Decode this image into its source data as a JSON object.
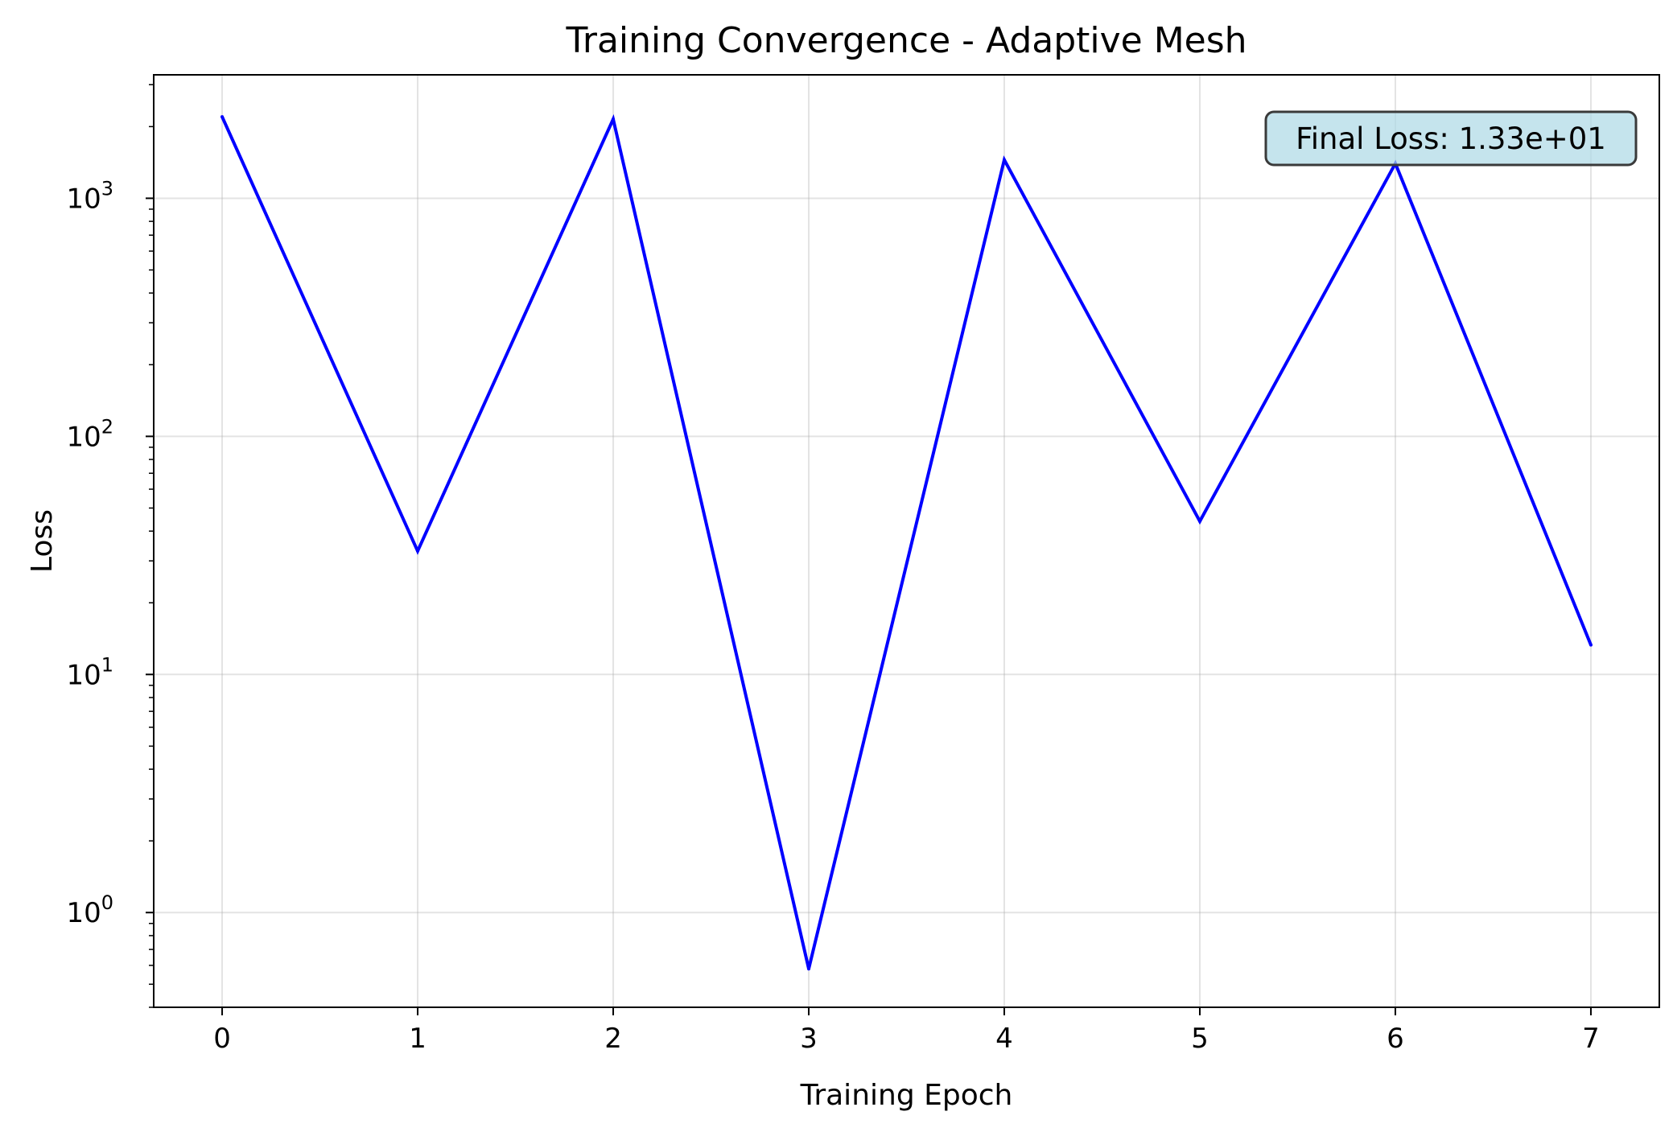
{
  "chart_data": {
    "type": "line",
    "title": "Training Convergence - Adaptive Mesh",
    "xlabel": "Training Epoch",
    "ylabel": "Loss",
    "xlim": [
      -0.35,
      7.35
    ],
    "ylim": [
      0.4,
      3300
    ],
    "yscale": "log",
    "grid": true,
    "x": [
      0,
      1,
      2,
      3,
      4,
      5,
      6,
      7
    ],
    "x_tick_labels": [
      "0",
      "1",
      "2",
      "3",
      "4",
      "5",
      "6",
      "7"
    ],
    "y_tick_labels": [
      {
        "base": "10",
        "exp": "0"
      },
      {
        "base": "10",
        "exp": "1"
      },
      {
        "base": "10",
        "exp": "2"
      },
      {
        "base": "10",
        "exp": "3"
      }
    ],
    "series": [
      {
        "values": [
          2200,
          33,
          2150,
          0.58,
          1450,
          44,
          1400,
          13.3
        ],
        "color": "#0000ff"
      }
    ],
    "annotation": {
      "text": "Final Loss: 1.33e+01",
      "position": "top-right",
      "background": "#add8e6",
      "border": "#3a3a3a"
    }
  }
}
